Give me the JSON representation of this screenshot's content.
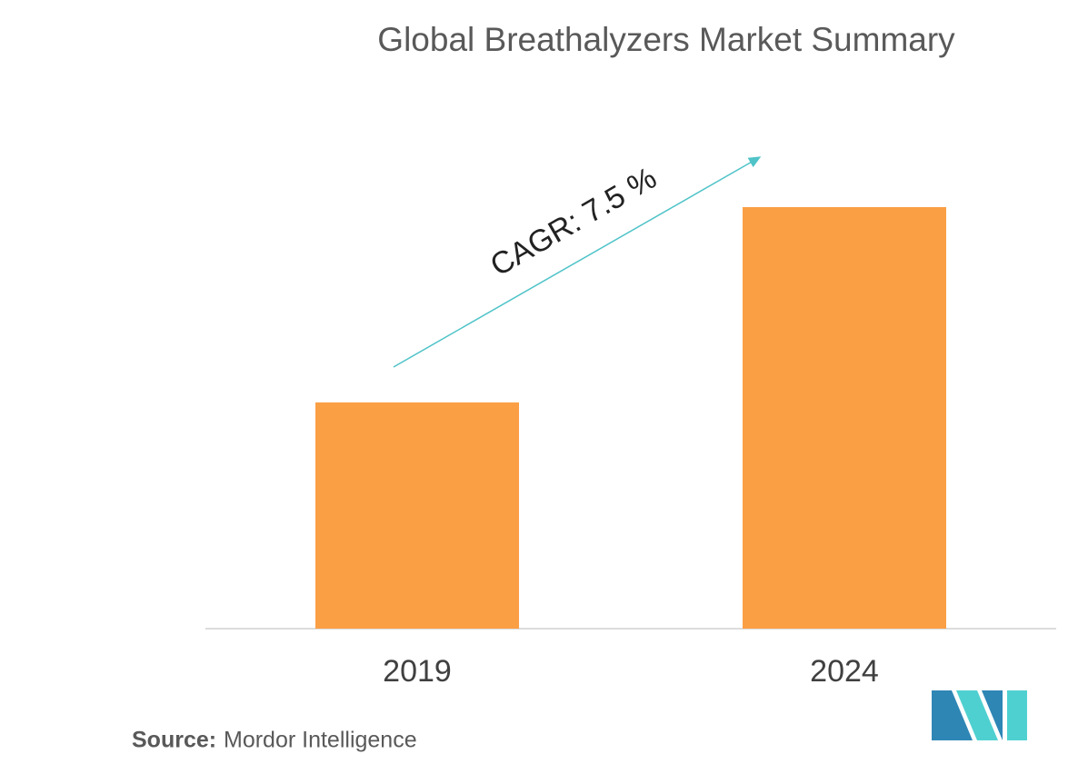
{
  "chart_data": {
    "type": "bar",
    "title": "Global Breathalyzers Market Summary",
    "categories": [
      "2019",
      "2024"
    ],
    "values": [
      249,
      464
    ],
    "color": "#fb9f45",
    "annotation": "CAGR: 7.5 %",
    "source_label": "Source:",
    "source": "Mordor Intelligence"
  }
}
